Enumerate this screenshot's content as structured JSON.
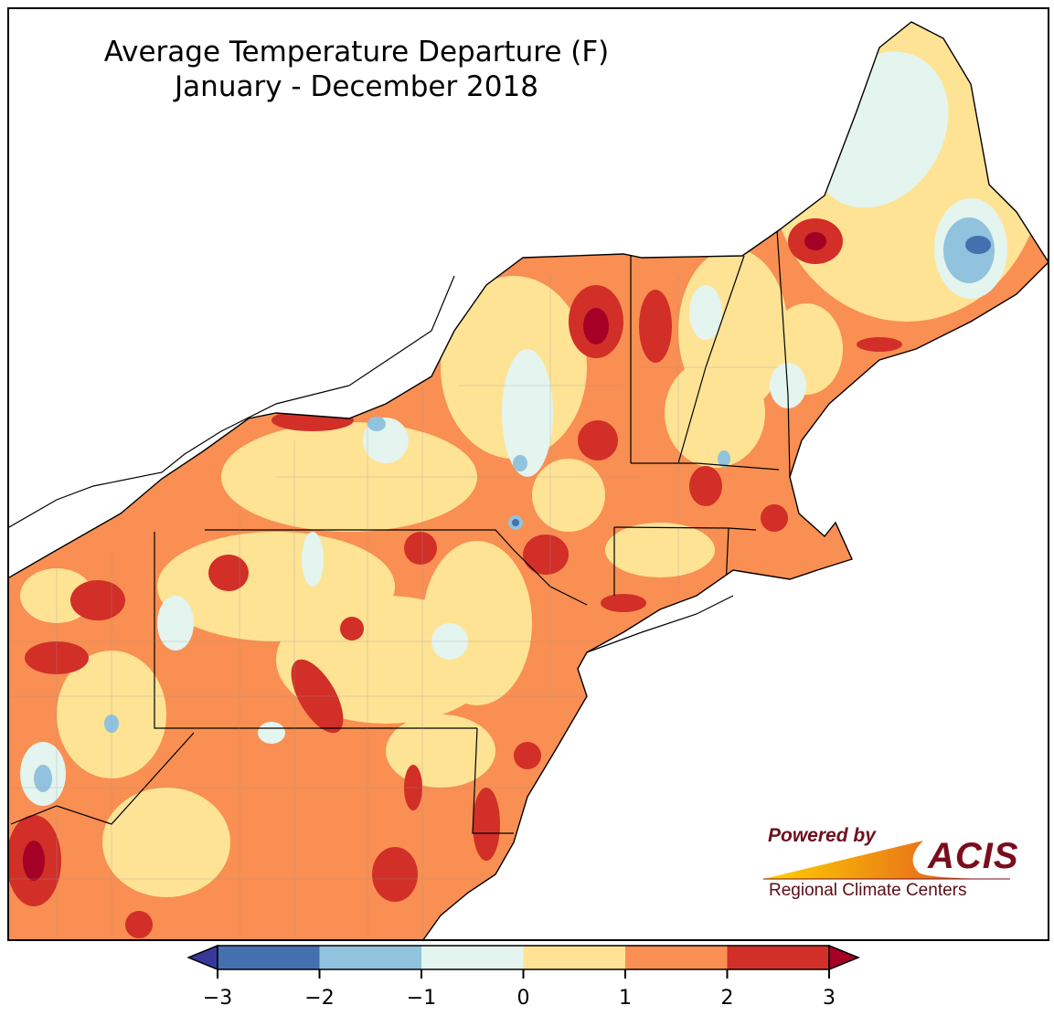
{
  "title": {
    "line1": "Average Temperature Departure (F)",
    "line2": "January - December 2018"
  },
  "logo": {
    "powered_by": "Powered by",
    "brand": "ACIS",
    "subtitle": "Regional Climate Centers"
  },
  "colorbar": {
    "ticks": [
      "−3",
      "−2",
      "−1",
      "0",
      "1",
      "2",
      "3"
    ],
    "bins": [
      {
        "range": [
          -3,
          -2
        ],
        "color": "#4470b0"
      },
      {
        "range": [
          -2,
          -1
        ],
        "color": "#91c3de"
      },
      {
        "range": [
          -1,
          0
        ],
        "color": "#e4f4ee"
      },
      {
        "range": [
          0,
          1
        ],
        "color": "#fee395"
      },
      {
        "range": [
          1,
          2
        ],
        "color": "#f98f52"
      },
      {
        "range": [
          2,
          3
        ],
        "color": "#d12f27"
      }
    ],
    "under_color": "#36399a",
    "over_color": "#a50026"
  }
}
